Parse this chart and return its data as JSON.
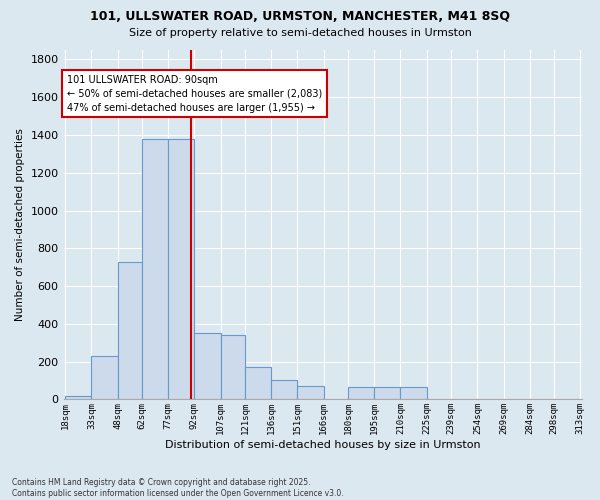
{
  "title1": "101, ULLSWATER ROAD, URMSTON, MANCHESTER, M41 8SQ",
  "title2": "Size of property relative to semi-detached houses in Urmston",
  "xlabel": "Distribution of semi-detached houses by size in Urmston",
  "ylabel": "Number of semi-detached properties",
  "footer1": "Contains HM Land Registry data © Crown copyright and database right 2025.",
  "footer2": "Contains public sector information licensed under the Open Government Licence v3.0.",
  "bin_edges": [
    18,
    33,
    48,
    62,
    77,
    92,
    107,
    121,
    136,
    151,
    166,
    180,
    195,
    210,
    225,
    239,
    254,
    269,
    284,
    298,
    313
  ],
  "bar_heights": [
    20,
    230,
    730,
    1380,
    1380,
    350,
    340,
    170,
    105,
    70,
    0,
    65,
    65,
    65,
    0,
    0,
    0,
    0,
    0,
    0
  ],
  "bar_color": "#ccdaeb",
  "bar_edge_color": "#6699cc",
  "tick_labels": [
    "18sqm",
    "33sqm",
    "48sqm",
    "62sqm",
    "77sqm",
    "92sqm",
    "107sqm",
    "121sqm",
    "136sqm",
    "151sqm",
    "166sqm",
    "180sqm",
    "195sqm",
    "210sqm",
    "225sqm",
    "239sqm",
    "254sqm",
    "269sqm",
    "284sqm",
    "298sqm",
    "313sqm"
  ],
  "ylim": [
    0,
    1850
  ],
  "yticks": [
    0,
    200,
    400,
    600,
    800,
    1000,
    1200,
    1400,
    1600,
    1800
  ],
  "vline_x": 90,
  "vline_color": "#cc0000",
  "annotation_text": "101 ULLSWATER ROAD: 90sqm\n← 50% of semi-detached houses are smaller (2,083)\n47% of semi-detached houses are larger (1,955) →",
  "annotation_box_color": "#cc0000",
  "bg_color": "#dce8f0",
  "plot_bg_color": "#dce8f0",
  "grid_color": "#ffffff"
}
